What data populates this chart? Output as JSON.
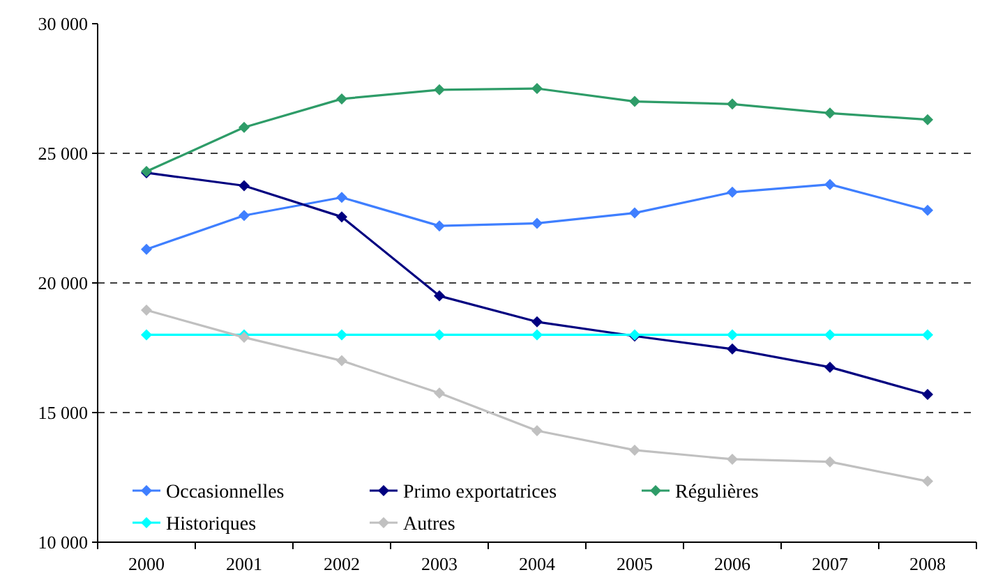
{
  "chart_data": {
    "type": "line",
    "categories": [
      "2000",
      "2001",
      "2002",
      "2003",
      "2004",
      "2005",
      "2006",
      "2007",
      "2008"
    ],
    "series": [
      {
        "name": "Occasionnelles",
        "color": "#3f7fff",
        "values": [
          21300,
          22600,
          23300,
          22200,
          22300,
          22700,
          23500,
          23800,
          22800
        ]
      },
      {
        "name": "Primo exportatrices",
        "color": "#000080",
        "values": [
          24250,
          23750,
          22550,
          19500,
          18500,
          17950,
          17450,
          16750,
          15700
        ]
      },
      {
        "name": "Régulières",
        "color": "#2e9c68",
        "values": [
          24300,
          26000,
          27100,
          27450,
          27500,
          27000,
          26900,
          26550,
          26300
        ]
      },
      {
        "name": "Historiques",
        "color": "#00ffff",
        "values": [
          18000,
          18000,
          18000,
          18000,
          18000,
          18000,
          18000,
          18000,
          18000
        ]
      },
      {
        "name": "Autres",
        "color": "#c0c0c0",
        "values": [
          18950,
          17900,
          17000,
          15750,
          14300,
          13550,
          13200,
          13100,
          12350
        ]
      }
    ],
    "ylim": [
      10000,
      30000
    ],
    "yticks": [
      {
        "value": 10000,
        "label": "10 000"
      },
      {
        "value": 15000,
        "label": "15 000"
      },
      {
        "value": 20000,
        "label": "20 000"
      },
      {
        "value": 25000,
        "label": "25 000"
      },
      {
        "value": 30000,
        "label": "30 000"
      }
    ],
    "grid": "y",
    "line_style": "solid",
    "marker": "diamond",
    "legend": "bottom left"
  }
}
